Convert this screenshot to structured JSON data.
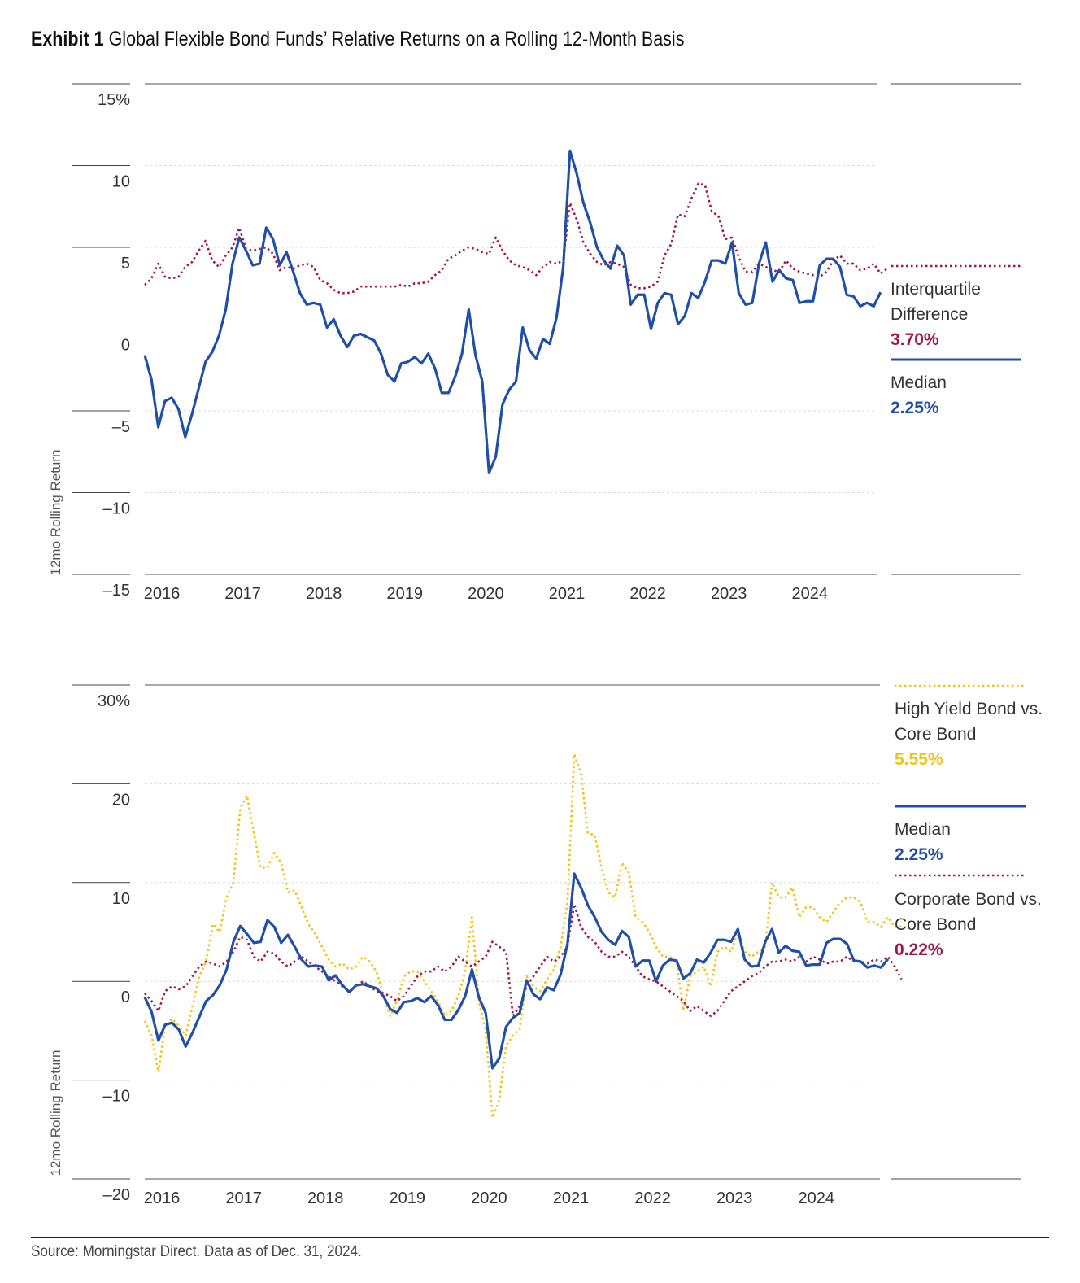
{
  "title": {
    "bold": "Exhibit 1",
    "rest": "Global Flexible Bond Funds’ Relative Returns on a Rolling 12-Month Basis"
  },
  "source": "Source: Morningstar Direct. Data as of Dec. 31, 2024.",
  "colors": {
    "median": "#1f4fa8",
    "iqr": "#a3154a",
    "high_yield": "#f2c311",
    "corporate": "#a3154a",
    "grid": "#d9d9d9",
    "axis": "#222222"
  },
  "chart_data": [
    {
      "type": "line",
      "title": "Global Flexible Bond Funds’ Relative Returns on a Rolling 12-Month Basis",
      "ylabel": "12mo Rolling Return",
      "ylim": [
        -15,
        15
      ],
      "yticks": [
        15,
        10,
        5,
        0,
        -5,
        -10,
        -15
      ],
      "ytick_labels": [
        "15%",
        "10",
        "5",
        "0",
        "–5",
        "–10",
        "–15"
      ],
      "xticks": [
        "2016",
        "2017",
        "2018",
        "2019",
        "2020",
        "2021",
        "2022",
        "2023",
        "2024"
      ],
      "x_start": 2016.0,
      "x_step": 0.083333,
      "series": [
        {
          "name": "Median",
          "label_lines": [
            "Median"
          ],
          "value_label": "2.25%",
          "color": "#1f4fa8",
          "style": "solid",
          "values": [
            -1.6,
            -3.1,
            -6.0,
            -4.4,
            -4.2,
            -4.9,
            -6.6,
            -5.2,
            -3.6,
            -2.0,
            -1.4,
            -0.4,
            1.2,
            4.0,
            5.6,
            4.8,
            3.9,
            4.0,
            6.2,
            5.5,
            3.9,
            4.7,
            3.5,
            2.2,
            1.5,
            1.6,
            1.5,
            0.1,
            0.6,
            -0.4,
            -1.1,
            -0.4,
            -0.3,
            -0.5,
            -0.7,
            -1.5,
            -2.8,
            -3.2,
            -2.1,
            -2.0,
            -1.7,
            -2.1,
            -1.5,
            -2.4,
            -3.9,
            -3.9,
            -2.9,
            -1.5,
            1.2,
            -1.6,
            -3.2,
            -8.8,
            -7.8,
            -4.6,
            -3.7,
            -3.2,
            0.1,
            -1.3,
            -1.8,
            -0.6,
            -0.9,
            0.7,
            3.8,
            10.9,
            9.5,
            7.7,
            6.5,
            5.0,
            4.2,
            3.7,
            5.1,
            4.5,
            1.5,
            2.1,
            2.1,
            0.0,
            1.6,
            2.2,
            2.1,
            0.3,
            0.8,
            2.2,
            1.9,
            2.9,
            4.2,
            4.2,
            4.0,
            5.3,
            2.2,
            1.5,
            1.6,
            4.0,
            5.3,
            2.9,
            3.6,
            3.1,
            3.0,
            1.6,
            1.7,
            1.7,
            3.9,
            4.3,
            4.3,
            3.8,
            2.1,
            2.0,
            1.4,
            1.6,
            1.4,
            2.25
          ]
        },
        {
          "name": "Interquartile Difference",
          "label_lines": [
            "Interquartile",
            "Difference"
          ],
          "value_label": "3.70%",
          "color": "#a3154a",
          "style": "dotted",
          "values": [
            2.7,
            3.1,
            4.0,
            3.2,
            3.1,
            3.2,
            3.8,
            4.1,
            4.8,
            5.4,
            4.2,
            3.8,
            4.5,
            5.0,
            6.2,
            4.9,
            4.8,
            4.9,
            5.0,
            4.6,
            3.6,
            3.8,
            3.7,
            3.9,
            4.0,
            3.8,
            3.0,
            2.8,
            2.4,
            2.2,
            2.2,
            2.3,
            2.6,
            2.6,
            2.6,
            2.6,
            2.6,
            2.6,
            2.7,
            2.6,
            2.8,
            2.8,
            2.9,
            3.3,
            3.6,
            4.3,
            4.5,
            4.8,
            5.0,
            4.9,
            4.7,
            4.6,
            5.6,
            4.8,
            4.2,
            3.9,
            3.8,
            3.6,
            3.3,
            3.8,
            4.1,
            4.0,
            4.2,
            7.7,
            6.7,
            5.3,
            4.6,
            4.1,
            3.9,
            4.1,
            4.0,
            3.8,
            2.7,
            2.5,
            2.5,
            2.6,
            2.9,
            4.5,
            5.2,
            7.0,
            6.9,
            8.0,
            8.9,
            8.8,
            7.2,
            6.9,
            5.5,
            5.6,
            4.4,
            3.5,
            3.5,
            4.0,
            3.8,
            3.6,
            3.5,
            4.2,
            3.7,
            3.5,
            3.4,
            3.3,
            3.2,
            3.5,
            4.2,
            4.5,
            4.0,
            4.0,
            3.6,
            3.7,
            4.0,
            3.4,
            3.7
          ]
        }
      ],
      "legend": "right"
    },
    {
      "type": "line",
      "ylabel": "12mo Rolling Return",
      "ylim": [
        -20,
        30
      ],
      "yticks": [
        30,
        20,
        10,
        0,
        -10,
        -20
      ],
      "ytick_labels": [
        "30%",
        "20",
        "10",
        "0",
        "–10",
        "–20"
      ],
      "xticks": [
        "2016",
        "2017",
        "2018",
        "2019",
        "2020",
        "2021",
        "2022",
        "2023",
        "2024"
      ],
      "x_start": 2016.0,
      "x_step": 0.083333,
      "series": [
        {
          "name": "High Yield Bond vs. Core Bond",
          "label_lines": [
            "High Yield Bond vs.",
            "Core Bond"
          ],
          "value_label": "5.55%",
          "color": "#f2c311",
          "style": "dotted",
          "values": [
            -4.0,
            -5.5,
            -9.2,
            -4.5,
            -3.8,
            -4.5,
            -5.5,
            -2.5,
            0.5,
            2.0,
            5.8,
            5.0,
            8.5,
            10.0,
            17.5,
            18.8,
            15.0,
            11.5,
            11.5,
            13.0,
            12.0,
            9.0,
            9.2,
            7.5,
            5.8,
            4.8,
            3.5,
            2.2,
            1.5,
            1.8,
            1.2,
            1.5,
            2.5,
            2.0,
            1.0,
            -1.5,
            -3.5,
            -2.0,
            0.5,
            1.0,
            1.0,
            0.0,
            -1.0,
            -2.0,
            -3.5,
            -3.0,
            -1.5,
            1.0,
            6.5,
            -2.0,
            -5.0,
            -13.8,
            -12.0,
            -6.5,
            -5.5,
            -4.8,
            0.5,
            -0.5,
            -1.0,
            0.2,
            1.2,
            3.5,
            8.0,
            23.0,
            21.0,
            15.0,
            14.8,
            11.5,
            9.0,
            8.5,
            12.0,
            11.0,
            6.5,
            6.0,
            5.0,
            3.5,
            2.5,
            2.5,
            2.0,
            -3.0,
            0.5,
            1.0,
            1.5,
            -0.5,
            3.0,
            3.5,
            3.0,
            5.0,
            3.0,
            2.5,
            3.0,
            3.5,
            10.0,
            8.5,
            8.5,
            9.5,
            6.5,
            7.5,
            7.5,
            6.5,
            6.0,
            7.0,
            8.0,
            8.5,
            8.5,
            8.0,
            6.0,
            6.0,
            5.5,
            6.5,
            5.5,
            5.55
          ]
        },
        {
          "name": "Median",
          "label_lines": [
            "Median"
          ],
          "value_label": "2.25%",
          "color": "#1f4fa8",
          "style": "solid",
          "values": [
            -1.6,
            -3.1,
            -6.0,
            -4.4,
            -4.2,
            -4.9,
            -6.6,
            -5.2,
            -3.6,
            -2.0,
            -1.4,
            -0.4,
            1.2,
            4.0,
            5.6,
            4.8,
            3.9,
            4.0,
            6.2,
            5.5,
            3.9,
            4.7,
            3.5,
            2.2,
            1.5,
            1.6,
            1.5,
            0.1,
            0.6,
            -0.4,
            -1.1,
            -0.4,
            -0.3,
            -0.5,
            -0.7,
            -1.5,
            -2.8,
            -3.2,
            -2.1,
            -2.0,
            -1.7,
            -2.1,
            -1.5,
            -2.4,
            -3.9,
            -3.9,
            -2.9,
            -1.5,
            1.2,
            -1.6,
            -3.2,
            -8.8,
            -7.8,
            -4.6,
            -3.7,
            -3.2,
            0.1,
            -1.3,
            -1.8,
            -0.6,
            -0.9,
            0.7,
            3.8,
            10.9,
            9.5,
            7.7,
            6.5,
            5.0,
            4.2,
            3.7,
            5.1,
            4.5,
            1.5,
            2.1,
            2.1,
            0.0,
            1.6,
            2.2,
            2.1,
            0.3,
            0.8,
            2.2,
            1.9,
            2.9,
            4.2,
            4.2,
            4.0,
            5.3,
            2.2,
            1.5,
            1.6,
            4.0,
            5.3,
            2.9,
            3.6,
            3.1,
            3.0,
            1.6,
            1.7,
            1.7,
            3.9,
            4.3,
            4.3,
            3.8,
            2.1,
            2.0,
            1.4,
            1.6,
            1.4,
            2.25
          ]
        },
        {
          "name": "Corporate Bond vs. Core Bond",
          "label_lines": [
            "Corporate Bond vs.",
            "Core Bond"
          ],
          "value_label": "0.22%",
          "color": "#a3154a",
          "style": "dotted",
          "values": [
            -1.2,
            -2.0,
            -3.0,
            -1.0,
            -0.5,
            -0.8,
            -0.5,
            0.5,
            1.5,
            2.0,
            1.8,
            1.5,
            2.0,
            3.0,
            4.5,
            4.2,
            2.5,
            2.0,
            3.0,
            2.8,
            2.0,
            1.5,
            2.0,
            2.5,
            2.0,
            1.5,
            1.0,
            0.5,
            0.0,
            -0.5,
            -1.0,
            -0.5,
            0.0,
            -0.5,
            -1.0,
            -1.2,
            -1.5,
            -2.0,
            -1.5,
            -0.5,
            0.5,
            1.0,
            1.0,
            1.5,
            1.0,
            1.5,
            2.5,
            2.0,
            1.5,
            2.0,
            2.5,
            4.0,
            3.5,
            3.0,
            -3.5,
            -2.5,
            -0.5,
            0.5,
            1.5,
            2.5,
            2.0,
            2.5,
            3.5,
            7.8,
            5.5,
            4.5,
            4.0,
            3.0,
            2.5,
            2.5,
            3.0,
            2.5,
            1.5,
            0.5,
            0.2,
            0.0,
            -0.5,
            -1.0,
            -1.5,
            -2.0,
            -3.0,
            -2.5,
            -3.0,
            -3.5,
            -3.0,
            -2.0,
            -1.0,
            -0.5,
            0.0,
            0.5,
            0.8,
            1.5,
            2.0,
            2.0,
            2.2,
            2.0,
            2.5,
            2.0,
            2.5,
            2.2,
            1.8,
            2.0,
            2.0,
            2.5,
            2.0,
            2.0,
            1.8,
            2.2,
            2.0,
            2.5,
            1.5,
            0.22
          ]
        }
      ],
      "legend": "right"
    }
  ]
}
